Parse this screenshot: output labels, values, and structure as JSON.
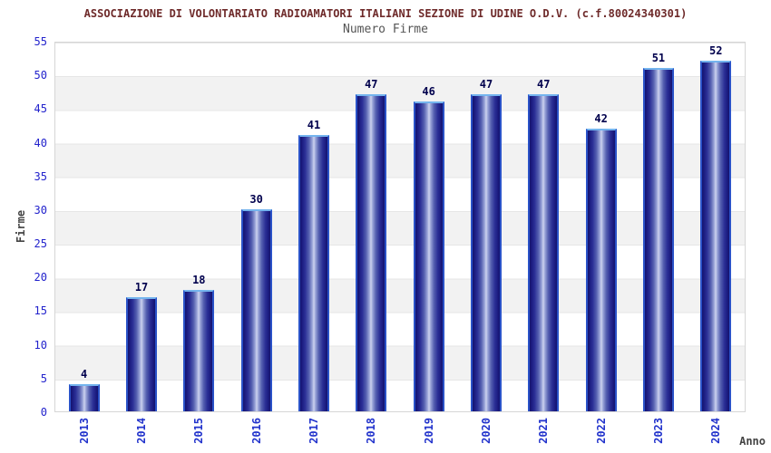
{
  "title": "ASSOCIAZIONE DI VOLONTARIATO RADIOAMATORI ITALIANI SEZIONE DI UDINE O.D.V. (c.f.80024340301)",
  "subtitle": "Numero Firme",
  "chart_data": {
    "type": "bar",
    "categories": [
      "2013",
      "2014",
      "2015",
      "2016",
      "2017",
      "2018",
      "2019",
      "2020",
      "2021",
      "2022",
      "2023",
      "2024"
    ],
    "values": [
      4,
      17,
      18,
      30,
      41,
      47,
      46,
      47,
      47,
      42,
      51,
      52
    ],
    "title": "Numero Firme",
    "xlabel": "Anno",
    "ylabel": "Firme",
    "ylim": [
      0,
      55
    ],
    "yticks": [
      0,
      5,
      10,
      15,
      20,
      25,
      30,
      35,
      40,
      45,
      50,
      55
    ],
    "grid": "horizontal alternating bands",
    "legend_position": "none",
    "bar_value_labels_shown": true
  },
  "colors": {
    "title_text": "#6e2a2a",
    "subtitle_text": "#555555",
    "tick_label": "#2222cc",
    "category_label": "#2233cc",
    "value_label": "#00004d",
    "axis_title": "#444444",
    "bar_edge_dark": "#15156e",
    "bar_center_light": "#cdd3ef",
    "bar_border": "#2a52c8",
    "bar_border_top": "#74b4ee",
    "band_gray": "#f2f2f2",
    "plot_border": "#d6d6d6"
  }
}
